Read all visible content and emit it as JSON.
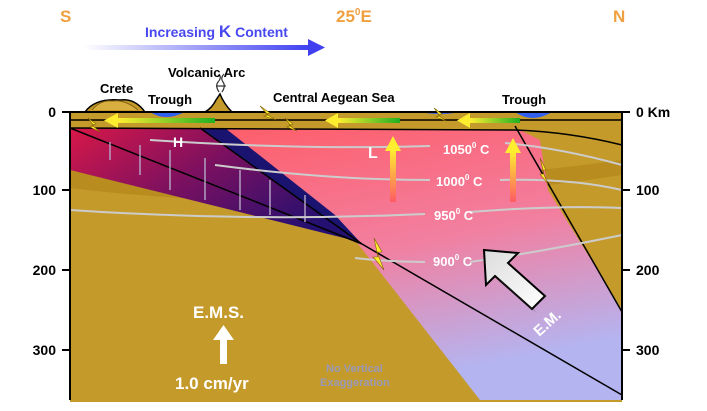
{
  "compass": {
    "south": "S",
    "longitude": "25",
    "longitude_sup": "0",
    "longitude_suffix": "E",
    "north": "N"
  },
  "increasing_k": {
    "prefix": "Increasing ",
    "k": "K",
    "suffix": " Content"
  },
  "places": {
    "crete": "Crete",
    "trough_left": "Trough",
    "volcanic_arc": "Volcanic Arc",
    "central_aegean_sea": "Central Aegean Sea",
    "trough_right": "Trough"
  },
  "depth_axis": {
    "left_ticks": [
      "0",
      "100",
      "200",
      "300"
    ],
    "right_ticks": [
      "0 Km",
      "100",
      "200",
      "300"
    ],
    "values": [
      0,
      100,
      200,
      300
    ]
  },
  "isotherms": [
    {
      "value": "1050",
      "sup": "0",
      "unit": " C"
    },
    {
      "value": "1000",
      "sup": "0",
      "unit": " C"
    },
    {
      "value": "950",
      "sup": "0",
      "unit": " C"
    },
    {
      "value": "900",
      "sup": "0",
      "unit": " C"
    }
  ],
  "markers": {
    "high": "H",
    "low": "L",
    "em": "E.M."
  },
  "ems": {
    "label": "E.M.S.",
    "rate": "1.0 cm/yr"
  },
  "note": {
    "line1": "No Vertical",
    "line2": "Exaggeration"
  },
  "colors": {
    "compass": "#f0a040",
    "k_arrow": "#4848f0",
    "mantle": "#ff6070",
    "crust": "#c49a2a",
    "slab": "#1a1470",
    "isotherm": "#cccccc",
    "white_text": "#ffffff"
  }
}
